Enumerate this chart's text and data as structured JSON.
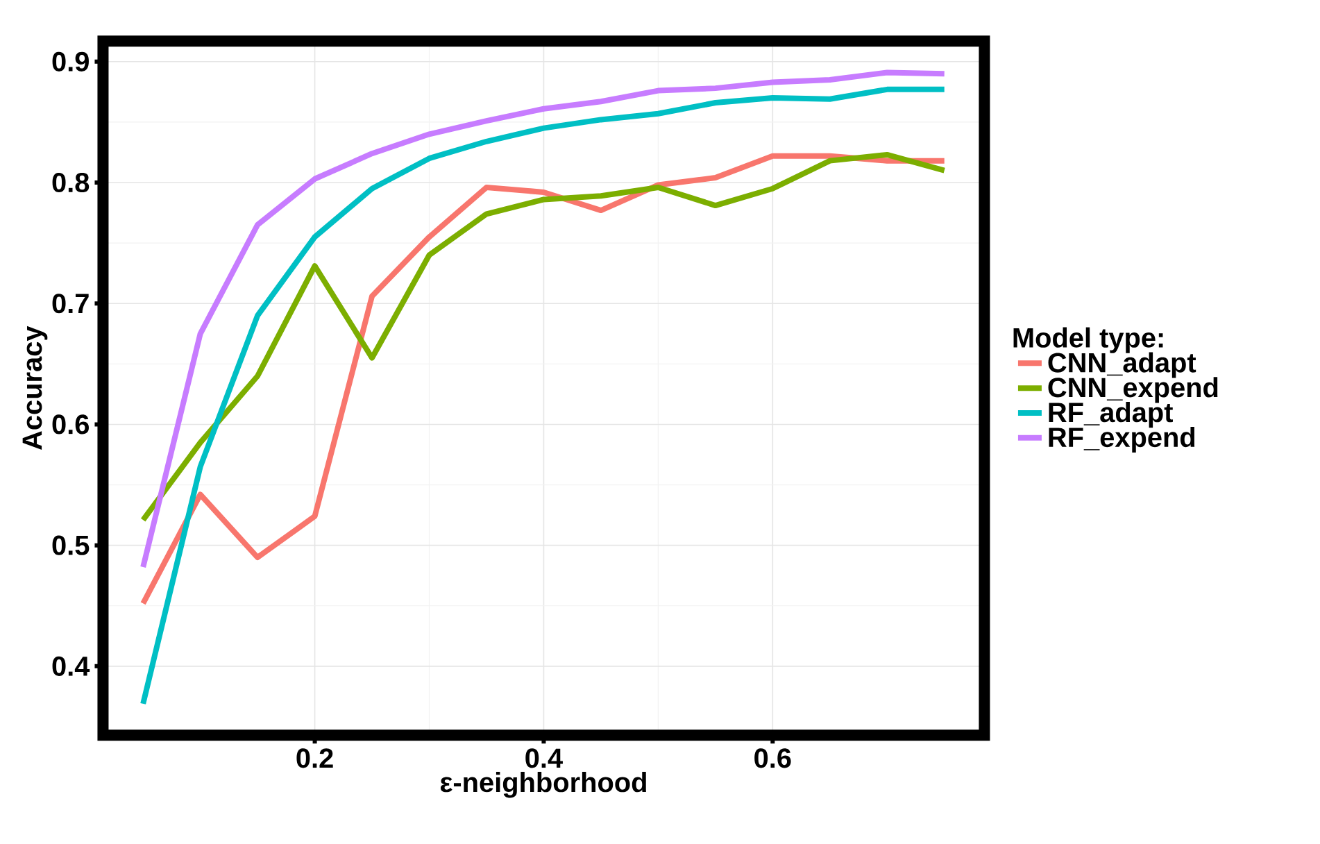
{
  "chart_data": {
    "type": "line",
    "xlabel": "ε-neighborhood",
    "ylabel": "Accuracy",
    "legend_title": "Model type:",
    "x": [
      0.05,
      0.1,
      0.15,
      0.2,
      0.25,
      0.3,
      0.35,
      0.4,
      0.45,
      0.5,
      0.55,
      0.6,
      0.65,
      0.7,
      0.75
    ],
    "series": [
      {
        "name": "CNN_adapt",
        "color": "#f8766d",
        "values": [
          0.452,
          0.542,
          0.49,
          0.524,
          0.706,
          0.755,
          0.796,
          0.792,
          0.777,
          0.798,
          0.804,
          0.822,
          0.822,
          0.818,
          0.818
        ]
      },
      {
        "name": "CNN_expend",
        "color": "#7cae00",
        "values": [
          0.521,
          0.585,
          0.64,
          0.731,
          0.655,
          0.74,
          0.774,
          0.786,
          0.789,
          0.796,
          0.781,
          0.795,
          0.818,
          0.823,
          0.81
        ]
      },
      {
        "name": "RF_adapt",
        "color": "#00bfc4",
        "values": [
          0.369,
          0.565,
          0.69,
          0.755,
          0.795,
          0.82,
          0.834,
          0.845,
          0.852,
          0.857,
          0.866,
          0.87,
          0.869,
          0.877,
          0.877
        ]
      },
      {
        "name": "RF_expend",
        "color": "#c77cff",
        "values": [
          0.482,
          0.675,
          0.765,
          0.803,
          0.824,
          0.84,
          0.851,
          0.861,
          0.867,
          0.876,
          0.878,
          0.883,
          0.885,
          0.891,
          0.89
        ]
      }
    ],
    "xlim": [
      0.015,
      0.785
    ],
    "ylim": [
      0.343,
      0.917
    ],
    "xticks": [
      0.2,
      0.4,
      0.6
    ],
    "yticks": [
      0.4,
      0.5,
      0.6,
      0.7,
      0.8,
      0.9
    ],
    "grid": true,
    "legend": "right",
    "marker": "none",
    "line_style": "solid"
  }
}
